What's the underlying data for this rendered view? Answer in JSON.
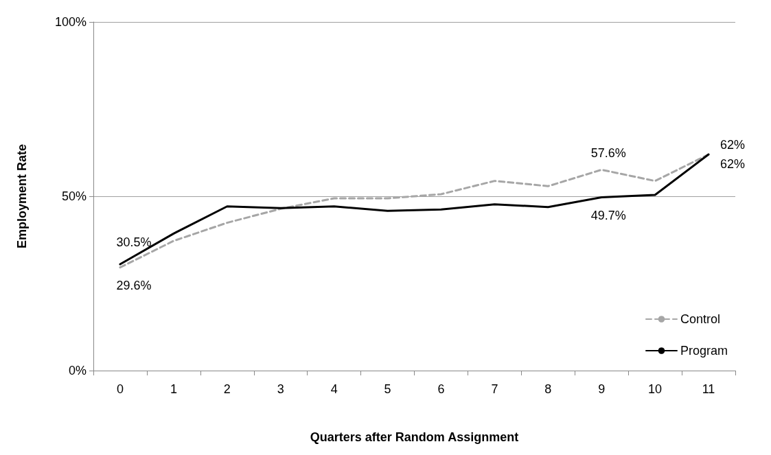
{
  "chart_data": {
    "type": "line",
    "xlabel": "Quarters after Random Assignment",
    "ylabel": "Employment Rate",
    "categories": [
      "0",
      "1",
      "2",
      "3",
      "4",
      "5",
      "6",
      "7",
      "8",
      "9",
      "10",
      "11"
    ],
    "ylim": [
      0,
      100
    ],
    "yticks": [
      {
        "value": 0,
        "label": "0%"
      },
      {
        "value": 50,
        "label": "50%"
      },
      {
        "value": 100,
        "label": "100%"
      }
    ],
    "grid": "y",
    "legend": "bottom right",
    "marker": "none",
    "series": [
      {
        "name": "Control",
        "color": "#a6a6a6",
        "line_style": "dashed",
        "values": [
          29.6,
          37.2,
          42.4,
          46.4,
          49.4,
          49.4,
          50.6,
          54.4,
          52.9,
          57.6,
          54.4,
          62
        ],
        "value_labels": [
          "29.6%",
          null,
          null,
          null,
          null,
          null,
          null,
          null,
          null,
          "57.6%",
          null,
          "62%"
        ]
      },
      {
        "name": "Program",
        "color": "#000000",
        "line_style": "solid",
        "values": [
          30.5,
          39.3,
          47.1,
          46.6,
          47.1,
          45.8,
          46.2,
          47.7,
          46.9,
          49.7,
          50.4,
          62
        ],
        "value_labels": [
          "30.5%",
          null,
          null,
          null,
          null,
          null,
          null,
          null,
          null,
          "49.7%",
          null,
          "62%"
        ]
      }
    ]
  }
}
